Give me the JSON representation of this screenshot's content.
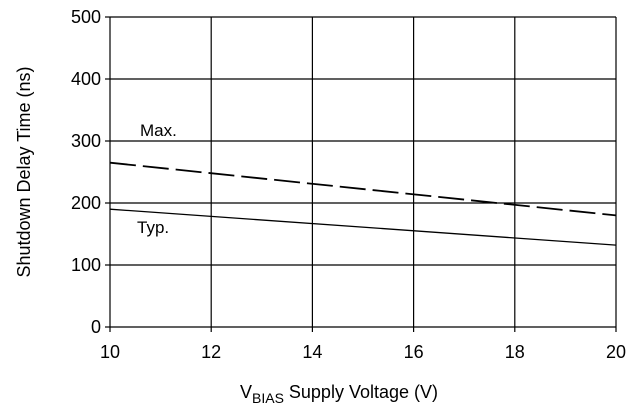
{
  "chart_data": {
    "type": "line",
    "title": "",
    "xlabel": {
      "main": "V",
      "subscript": "BIAS",
      "rest": " Supply Voltage (V)"
    },
    "ylabel": "Shutdown Delay Time (ns)",
    "xlim": [
      10,
      20
    ],
    "ylim": [
      0,
      500
    ],
    "xticks": [
      10,
      12,
      14,
      16,
      18,
      20
    ],
    "yticks": [
      0,
      100,
      200,
      300,
      400,
      500
    ],
    "grid": true,
    "series": [
      {
        "name": "Max.",
        "style": "dashed",
        "color": "#000000",
        "x": [
          10,
          20
        ],
        "y": [
          265,
          180
        ]
      },
      {
        "name": "Typ.",
        "style": "solid",
        "color": "#000000",
        "x": [
          10,
          20
        ],
        "y": [
          190,
          132
        ]
      }
    ]
  }
}
